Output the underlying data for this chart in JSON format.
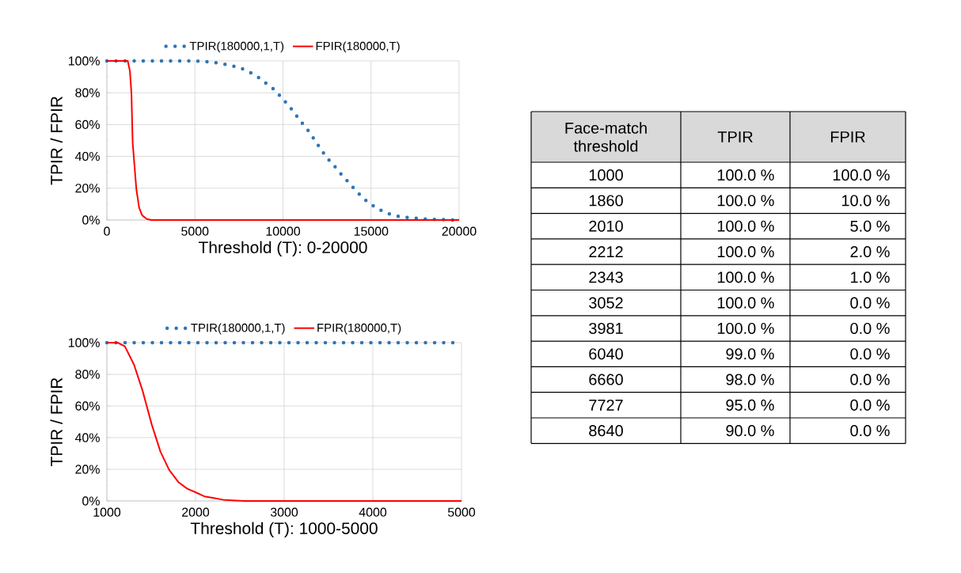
{
  "chart_data": [
    {
      "type": "line",
      "xlabel": "Threshold (T): 0-20000",
      "ylabel": "TPIR / FPIR",
      "xlim": [
        0,
        20000
      ],
      "ylim": [
        0,
        100
      ],
      "xticks": [
        0,
        5000,
        10000,
        15000,
        20000
      ],
      "yticks": [
        {
          "value": 0,
          "label": "0%"
        },
        {
          "value": 20,
          "label": "20%"
        },
        {
          "value": 40,
          "label": "40%"
        },
        {
          "value": 60,
          "label": "60%"
        },
        {
          "value": 80,
          "label": "80%"
        },
        {
          "value": 100,
          "label": "100%"
        }
      ],
      "grid": true,
      "legend": "top",
      "series": [
        {
          "name": "TPIR(180000,1,T)",
          "color": "#2e75b6",
          "line_style": "dotted",
          "x": [
            0,
            541,
            1098,
            1656,
            2214,
            2772,
            3330,
            3888,
            4446,
            4987,
            5545,
            6103,
            6643,
            7200,
            7760,
            8230,
            8680,
            9120,
            9555,
            9904,
            10288,
            10636,
            10968,
            11334,
            11648,
            11962,
            12276,
            12607,
            12973,
            13339,
            13723,
            14089,
            14473,
            14874,
            15344,
            15833,
            16373,
            16931,
            17489,
            18047,
            18588,
            19146,
            19704
          ],
          "values": [
            100,
            100,
            100,
            100,
            100,
            100,
            100,
            100,
            100,
            100,
            99.6,
            99.0,
            98.0,
            96.7,
            94.8,
            92.2,
            89.1,
            85.2,
            81.6,
            77.1,
            72.4,
            67.6,
            62.5,
            57.7,
            52.8,
            47.6,
            42.5,
            37.7,
            33.2,
            28.3,
            23.7,
            19.0,
            14.6,
            10.7,
            7.4,
            4.5,
            2.7,
            1.7,
            1.2,
            0.6,
            0.4,
            0.2,
            0
          ]
        },
        {
          "name": "FPIR(180000,T)",
          "color": "#ff0000",
          "line_style": "solid",
          "x": [
            0,
            1186,
            1308,
            1395,
            1465,
            1674,
            1831,
            2005,
            2267,
            2528,
            20000
          ],
          "values": [
            100,
            100,
            93.6,
            79.6,
            48.5,
            19.4,
            7.8,
            2.9,
            0.6,
            0,
            0
          ]
        }
      ]
    },
    {
      "type": "line",
      "xlabel": "Threshold (T): 1000-5000",
      "ylabel": "TPIR / FPIR",
      "xlim": [
        1000,
        5000
      ],
      "ylim": [
        0,
        100
      ],
      "xticks": [
        1000,
        2000,
        3000,
        4000,
        5000
      ],
      "yticks": [
        {
          "value": 0,
          "label": "0%"
        },
        {
          "value": 20,
          "label": "20%"
        },
        {
          "value": 40,
          "label": "40%"
        },
        {
          "value": 60,
          "label": "60%"
        },
        {
          "value": 80,
          "label": "80%"
        },
        {
          "value": 100,
          "label": "100%"
        }
      ],
      "grid": true,
      "legend": "top",
      "series": [
        {
          "name": "TPIR(180000,1,T)",
          "color": "#2e75b6",
          "line_style": "dotted",
          "x": [
            1000,
            2000,
            3000,
            4000,
            5000
          ],
          "values": [
            100,
            100,
            100,
            100,
            100
          ]
        },
        {
          "name": "FPIR(180000,T)",
          "color": "#ff0000",
          "line_style": "solid",
          "x": [
            1000,
            1122,
            1203,
            1307,
            1402,
            1506,
            1604,
            1702,
            1807,
            1905,
            2000,
            2100,
            2205,
            2310,
            2415,
            2554,
            5000
          ],
          "values": [
            100,
            100,
            97.7,
            86,
            69.8,
            48.3,
            31.2,
            19.7,
            11.9,
            7.8,
            5.5,
            2.9,
            1.9,
            0.8,
            0.4,
            0,
            0
          ]
        }
      ]
    },
    {
      "type": "other",
      "annotations": [
        "Face-match threshold",
        "TPIR",
        "FPIR",
        "1000",
        "100.0 %",
        "100.0 %",
        "1860",
        "100.0 %",
        "10.0 %",
        "2010",
        "100.0 %",
        "5.0 %",
        "2212",
        "100.0 %",
        "2.0 %",
        "2343",
        "100.0 %",
        "1.0 %",
        "3052",
        "100.0 %",
        "0.0 %",
        "3981",
        "100.0 %",
        "0.0 %",
        "6040",
        "99.0 %",
        "0.0 %",
        "6660",
        "98.0 %",
        "0.0 %",
        "7727",
        "95.0 %",
        "0.0 %",
        "8640",
        "90.0 %",
        "0.0 %"
      ]
    }
  ]
}
